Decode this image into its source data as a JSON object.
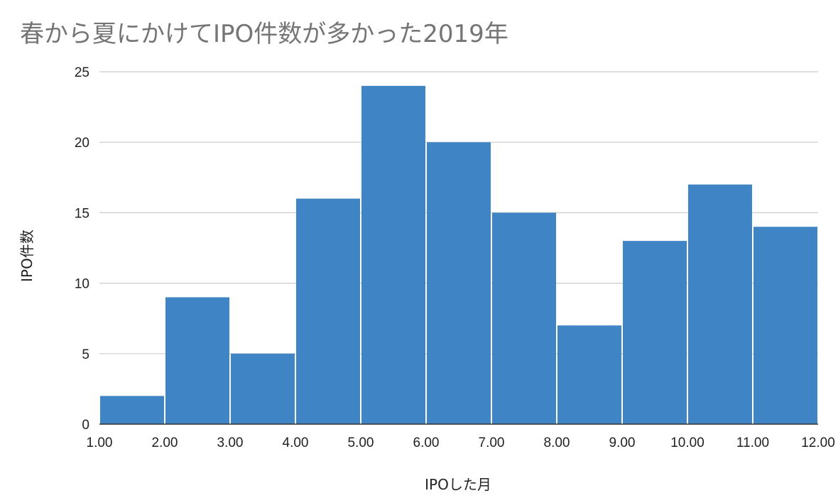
{
  "chart_data": {
    "type": "bar",
    "title": "春から夏にかけてIPO件数が多かった2019年",
    "xlabel": "IPOした月",
    "ylabel": "IPO件数",
    "x_ticks": [
      "1.00",
      "2.00",
      "3.00",
      "4.00",
      "5.00",
      "6.00",
      "7.00",
      "8.00",
      "9.00",
      "10.00",
      "11.00",
      "12.00"
    ],
    "bins": [
      {
        "start": 1,
        "end": 2,
        "value": 2
      },
      {
        "start": 2,
        "end": 3,
        "value": 9
      },
      {
        "start": 3,
        "end": 4,
        "value": 5
      },
      {
        "start": 4,
        "end": 5,
        "value": 16
      },
      {
        "start": 5,
        "end": 6,
        "value": 24
      },
      {
        "start": 6,
        "end": 7,
        "value": 20
      },
      {
        "start": 7,
        "end": 8,
        "value": 15
      },
      {
        "start": 8,
        "end": 9,
        "value": 7
      },
      {
        "start": 9,
        "end": 10,
        "value": 13
      },
      {
        "start": 10,
        "end": 11,
        "value": 17
      },
      {
        "start": 11,
        "end": 12,
        "value": 14
      }
    ],
    "y_ticks": [
      0,
      5,
      10,
      15,
      20,
      25
    ],
    "ylim": [
      0,
      25
    ],
    "xlim": [
      1,
      12
    ],
    "grid": true,
    "bar_color": "#3f85c5",
    "gridline_color": "#cccccc"
  }
}
